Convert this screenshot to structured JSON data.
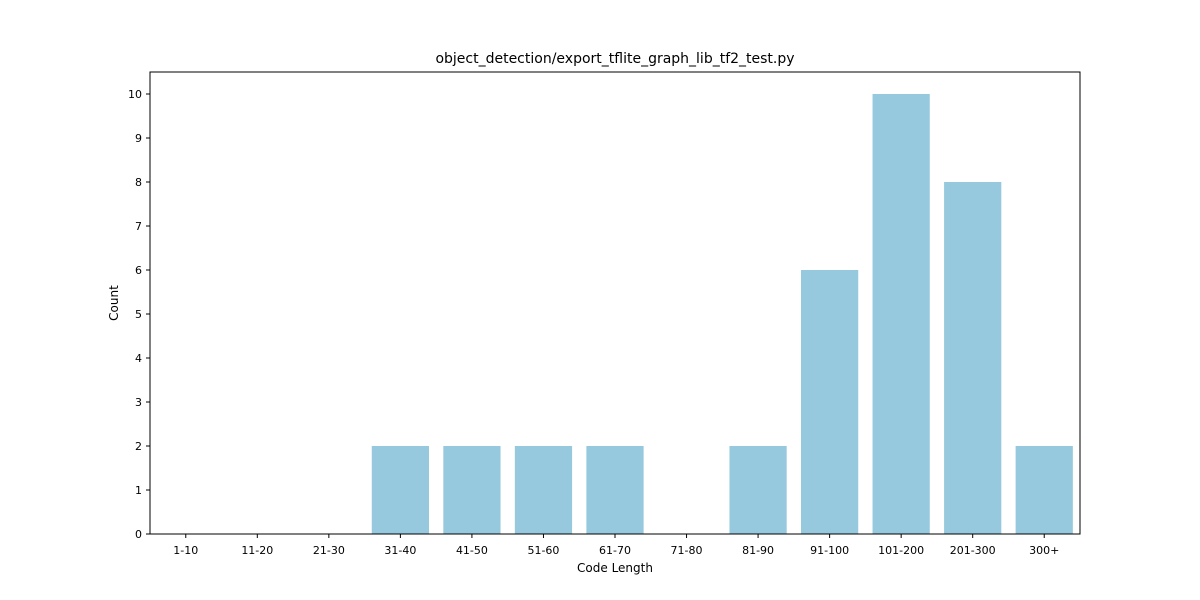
{
  "chart_data": {
    "type": "bar",
    "title": "object_detection/export_tflite_graph_lib_tf2_test.py",
    "xlabel": "Code Length",
    "ylabel": "Count",
    "categories": [
      "1-10",
      "11-20",
      "21-30",
      "31-40",
      "41-50",
      "51-60",
      "61-70",
      "71-80",
      "81-90",
      "91-100",
      "101-200",
      "201-300",
      "300+"
    ],
    "values": [
      0,
      0,
      0,
      2,
      2,
      2,
      2,
      0,
      2,
      6,
      10,
      8,
      2
    ],
    "ylim": [
      0,
      10.5
    ],
    "yticks": [
      0,
      1,
      2,
      3,
      4,
      5,
      6,
      7,
      8,
      9,
      10
    ],
    "bar_color": "#96c9de",
    "grid": false,
    "legend": "none"
  }
}
